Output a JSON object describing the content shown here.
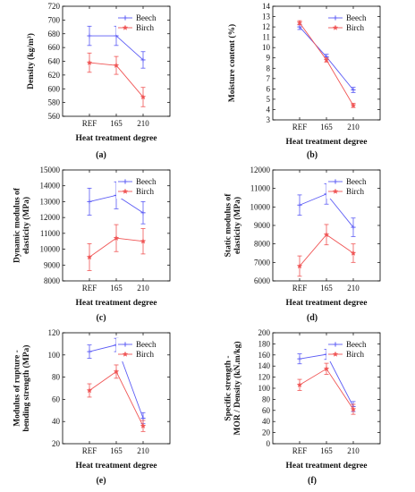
{
  "colors": {
    "beech": "#5b5bf5",
    "birch": "#f05555"
  },
  "panel_labels": [
    "(a)",
    "(b)",
    "(c)",
    "(d)",
    "(e)",
    "(f)"
  ],
  "chart_data": [
    {
      "type": "line",
      "xlabel": "Heat treatment degree",
      "ylabel": "Density (kg/m³)",
      "categories": [
        "REF",
        "165",
        "210"
      ],
      "ylim": [
        560,
        720
      ],
      "yticks": [
        560,
        580,
        600,
        620,
        640,
        660,
        680,
        700,
        720
      ],
      "legend": "top-right",
      "grid": false,
      "series": [
        {
          "name": "Beech",
          "values": [
            677,
            677,
            642
          ],
          "errors": [
            14,
            14,
            12
          ]
        },
        {
          "name": "Birch",
          "values": [
            638,
            634,
            588
          ],
          "errors": [
            14,
            13,
            14
          ]
        }
      ]
    },
    {
      "type": "line",
      "xlabel": "Heat treatment degree",
      "ylabel": "Moisture content (%)",
      "categories": [
        "REF",
        "165",
        "210"
      ],
      "ylim": [
        3,
        14
      ],
      "yticks": [
        3,
        4,
        5,
        6,
        7,
        8,
        9,
        10,
        11,
        12,
        13,
        14
      ],
      "legend": "top-right",
      "grid": false,
      "series": [
        {
          "name": "Beech",
          "values": [
            12.0,
            9.1,
            5.9
          ],
          "errors": [
            0.25,
            0.25,
            0.25
          ]
        },
        {
          "name": "Birch",
          "values": [
            12.4,
            8.8,
            4.4
          ],
          "errors": [
            0.2,
            0.2,
            0.2
          ]
        }
      ]
    },
    {
      "type": "line",
      "xlabel": "Heat treatment degree",
      "ylabel": "Dynamic modulus of elasticity (MPa)",
      "categories": [
        "REF",
        "165",
        "210"
      ],
      "ylim": [
        8000,
        15000
      ],
      "yticks": [
        8000,
        9000,
        10000,
        11000,
        12000,
        13000,
        14000,
        15000
      ],
      "legend": "top-right",
      "grid": false,
      "series": [
        {
          "name": "Beech",
          "values": [
            13000,
            13400,
            12300
          ],
          "errors": [
            850,
            850,
            700
          ]
        },
        {
          "name": "Birch",
          "values": [
            9500,
            10700,
            10500
          ],
          "errors": [
            850,
            850,
            800
          ]
        }
      ]
    },
    {
      "type": "line",
      "xlabel": "Heat treatment degree",
      "ylabel": "Static modulus of elasticity (MPa)",
      "categories": [
        "REF",
        "165",
        "210"
      ],
      "ylim": [
        6000,
        12000
      ],
      "yticks": [
        6000,
        7000,
        8000,
        9000,
        10000,
        11000,
        12000
      ],
      "legend": "top-right",
      "grid": false,
      "series": [
        {
          "name": "Beech",
          "values": [
            10100,
            10700,
            8900
          ],
          "errors": [
            550,
            550,
            500
          ]
        },
        {
          "name": "Birch",
          "values": [
            6800,
            8500,
            7500
          ],
          "errors": [
            550,
            550,
            500
          ]
        }
      ]
    },
    {
      "type": "line",
      "xlabel": "Heat treatment degree",
      "ylabel": "Modulus of rupture - bending strength (MPa)",
      "categories": [
        "REF",
        "165",
        "210"
      ],
      "ylim": [
        20,
        120
      ],
      "yticks": [
        20,
        40,
        60,
        80,
        100,
        120
      ],
      "legend": "top-right",
      "grid": false,
      "series": [
        {
          "name": "Beech",
          "values": [
            103,
            109,
            43
          ],
          "errors": [
            6,
            6,
            5
          ]
        },
        {
          "name": "Birch",
          "values": [
            68,
            85,
            36
          ],
          "errors": [
            6,
            6,
            5
          ]
        }
      ]
    },
    {
      "type": "line",
      "xlabel": "Heat treatment degree",
      "ylabel": "Specific strength - MOR / Density (kN.m/kg)",
      "categories": [
        "REF",
        "165",
        "210"
      ],
      "ylim": [
        0,
        200
      ],
      "yticks": [
        0,
        20,
        40,
        60,
        80,
        100,
        120,
        140,
        160,
        180,
        200
      ],
      "legend": "top-right",
      "grid": false,
      "series": [
        {
          "name": "Beech",
          "values": [
            153,
            161,
            67
          ],
          "errors": [
            9,
            9,
            9
          ]
        },
        {
          "name": "Birch",
          "values": [
            106,
            135,
            62
          ],
          "errors": [
            10,
            10,
            9
          ]
        }
      ]
    }
  ]
}
